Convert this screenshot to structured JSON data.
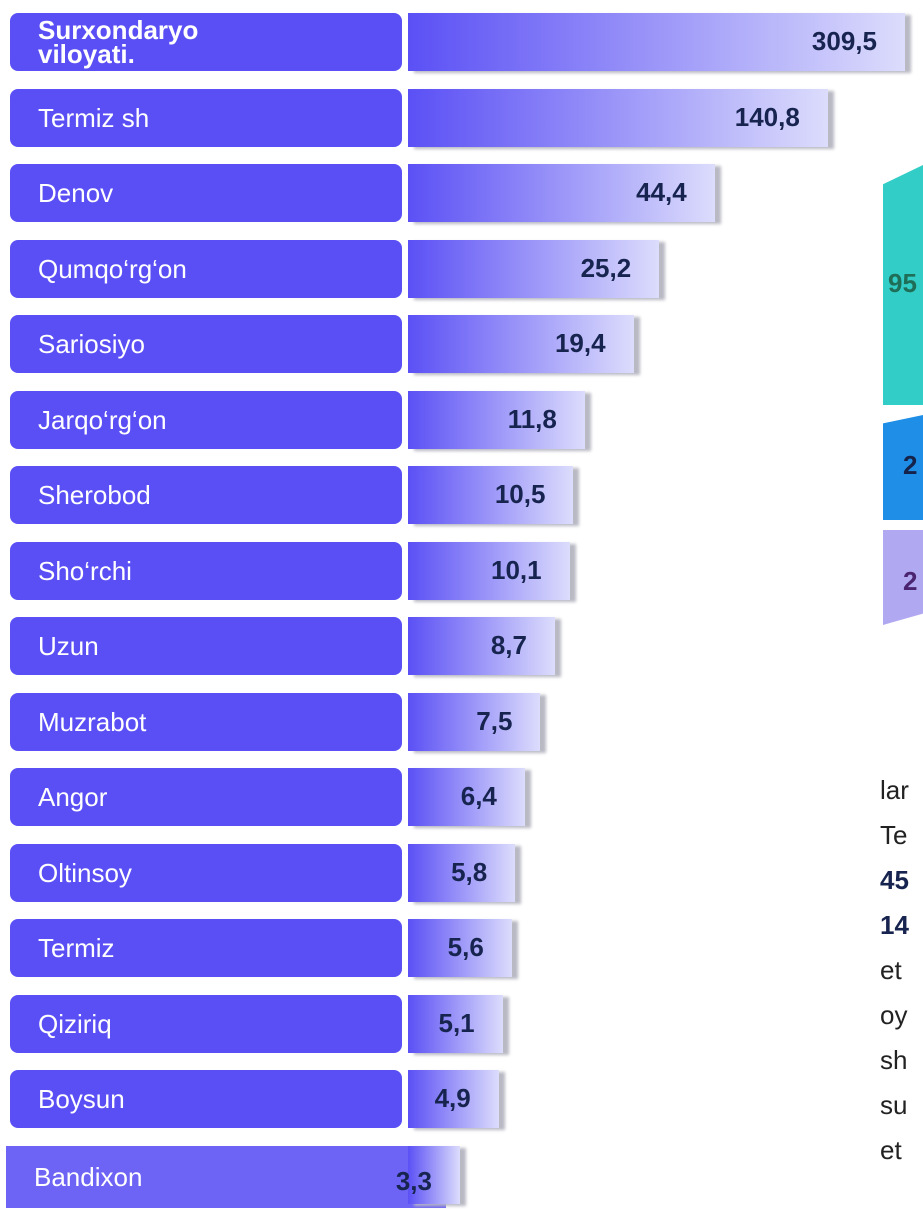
{
  "chart_data": {
    "type": "bar",
    "orientation": "horizontal",
    "log_scale": true,
    "categories": [
      "Surxondaryo viloyati.",
      "Termiz sh",
      "Denov",
      "Qumqo‘rg‘on",
      "Sariosiyo",
      "Jarqo‘rg‘on",
      "Sherobod",
      "Sho‘rchi",
      "Uzun",
      "Muzrabot",
      "Angor",
      "Oltinsoy",
      "Termiz",
      "Qiziriq",
      "Boysun",
      "Bandixon"
    ],
    "values": [
      309.5,
      140.8,
      44.4,
      25.2,
      19.4,
      11.8,
      10.5,
      10.1,
      8.7,
      7.5,
      6.4,
      5.8,
      5.6,
      5.1,
      4.9,
      3.3
    ],
    "value_labels": [
      "309,5",
      "140,8",
      "44,4",
      "25,2",
      "19,4",
      "11,8",
      "10,5",
      "10,1",
      "8,7",
      "7,5",
      "6,4",
      "5,8",
      "5,6",
      "5,1",
      "4,9",
      "3,3"
    ],
    "color": "#5b50f5"
  },
  "side_panel": {
    "badges": [
      "95",
      "2",
      "2"
    ],
    "text_lines": [
      "lar",
      "Te",
      "45",
      "14",
      "et",
      "oy",
      "sh",
      "su",
      "et"
    ]
  }
}
